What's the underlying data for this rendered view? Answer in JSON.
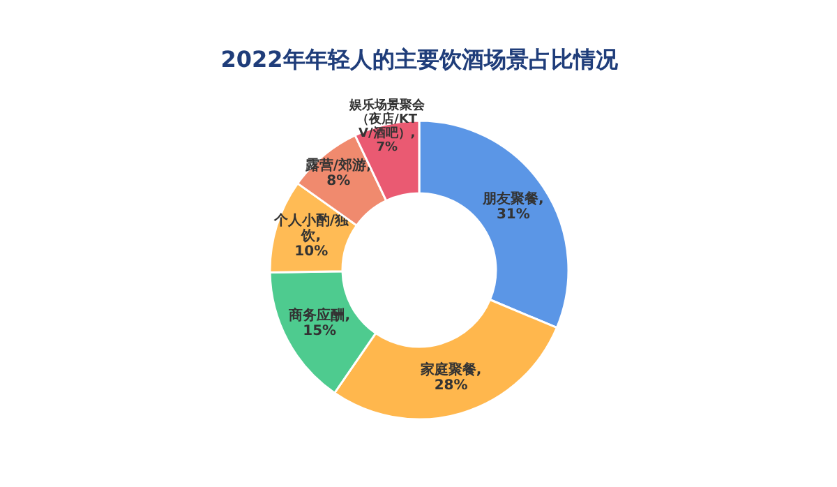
{
  "chart_data": {
    "type": "donut",
    "title": "2022年年轻人的主要饮酒场景占比情况",
    "categories": [
      "朋友聚餐",
      "家庭聚餐",
      "商务应酬",
      "个人小酌/独饮",
      "露营/郊游",
      "娱乐场景聚会（夜店/KTV/酒吧）"
    ],
    "values": [
      31,
      28,
      15,
      10,
      8,
      7
    ],
    "value_labels": [
      ",\n31%",
      ",\n28%",
      ",\n15%",
      ",\n10%",
      ",\n8%",
      ",\n7%"
    ],
    "colors": [
      "#5b96e6",
      "#ffb74d",
      "#4ecb8f",
      "#ffbb55",
      "#f08a6e",
      "#ea5a72"
    ],
    "legend": false
  }
}
